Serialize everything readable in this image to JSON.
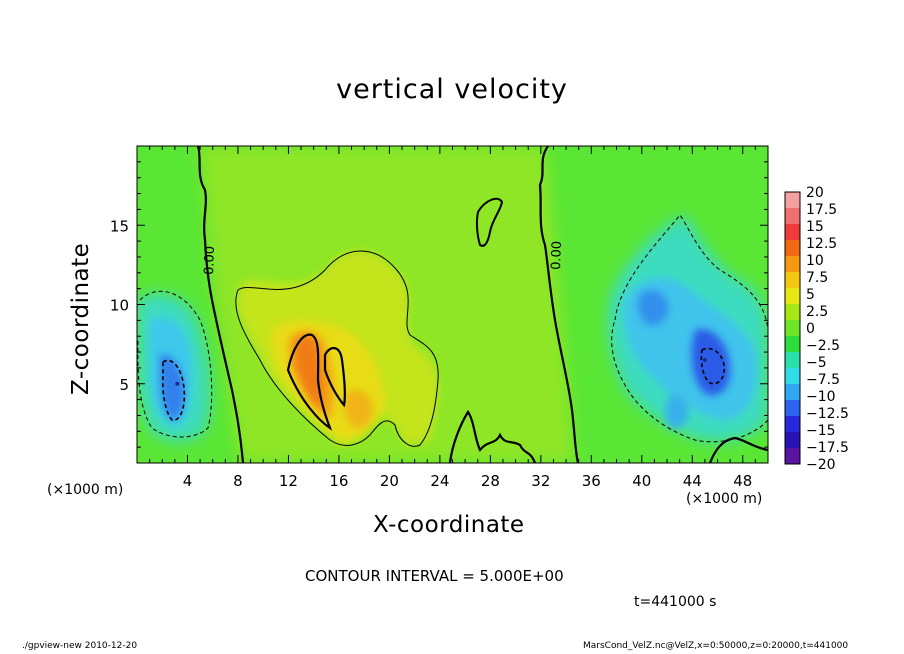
{
  "chart_data": {
    "type": "heatmap",
    "title": "vertical velocity",
    "xlabel": "X-coordinate",
    "ylabel": "Z-coordinate",
    "x_unit_labels": [
      "(×1000 m)",
      "(×1000 m)"
    ],
    "xlim": [
      0,
      50
    ],
    "ylim": [
      0,
      20
    ],
    "x_ticks": [
      4,
      8,
      12,
      16,
      20,
      24,
      28,
      32,
      36,
      40,
      44,
      48
    ],
    "y_ticks": [
      5,
      10,
      15
    ],
    "contour_interval": "CONTOUR INTERVAL = 5.000E+00",
    "contour_labels": [
      "0.00",
      "0.00"
    ],
    "time_label": "t=441000 s",
    "colorbar": {
      "levels": [
        "20",
        "17.5",
        "15",
        "12.5",
        "10",
        "7.5",
        "5",
        "2.5",
        "0",
        "-2.5",
        "-5",
        "-7.5",
        "-10",
        "-12.5",
        "-15",
        "-17.5",
        "-20"
      ],
      "colors": [
        "#f4a0a0",
        "#f07070",
        "#ee3c3c",
        "#f06a14",
        "#f59a10",
        "#f5c810",
        "#e8e614",
        "#a8e614",
        "#6ee62a",
        "#2edc3c",
        "#28e0a8",
        "#30dce8",
        "#30a8f0",
        "#2c64f0",
        "#2828dc",
        "#2814b4",
        "#5a14a0"
      ]
    },
    "features": [
      {
        "name": "downdraft",
        "x": 3.2,
        "z": 5.0,
        "w": -10
      },
      {
        "name": "updraft",
        "x": 14.2,
        "z": 6.0,
        "w": 11
      },
      {
        "name": "updraft",
        "x": 18.5,
        "z": 5.0,
        "w": 6
      },
      {
        "name": "downdraft",
        "x": 45.0,
        "z": 6.5,
        "w": -12
      },
      {
        "name": "downdraft",
        "x": 40.5,
        "z": 10.0,
        "w": -7
      },
      {
        "name": "downdraft",
        "x": 46.0,
        "z": 3.0,
        "w": -6
      }
    ]
  },
  "footer": {
    "left": "./gpview-new  2010-12-20",
    "right": "MarsCond_VelZ.nc@VelZ,x=0:50000,z=0:20000,t=441000"
  }
}
